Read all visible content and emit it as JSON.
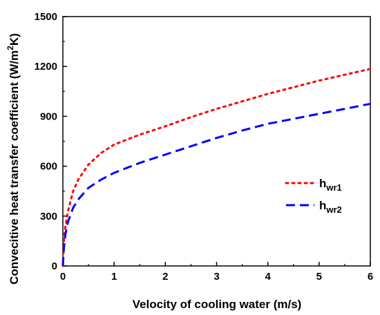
{
  "chart_data": {
    "type": "line",
    "xlabel": "Velocity of cooling water (m/s)",
    "ylabel": {
      "main": "Convecitive heat transfer coefficient (W/m",
      "sup": "2",
      "tail": "K)"
    },
    "xlim": [
      0,
      6
    ],
    "ylim": [
      0,
      1500
    ],
    "xticks": [
      "0",
      "1",
      "2",
      "3",
      "4",
      "5",
      "6"
    ],
    "yticks": [
      "0",
      "300",
      "600",
      "900",
      "1200",
      "1500"
    ],
    "grid": false,
    "legend_position": "right",
    "series": [
      {
        "name": {
          "base": "h",
          "sub": "wr1"
        },
        "color": "#ff0000",
        "style": "dotted",
        "x": [
          0,
          0.02,
          0.05,
          0.1,
          0.2,
          0.3,
          0.5,
          0.75,
          1,
          1.5,
          2,
          2.5,
          3,
          3.5,
          4,
          4.5,
          5,
          5.5,
          6
        ],
        "y": [
          0,
          150,
          240,
          330,
          450,
          520,
          610,
          680,
          730,
          790,
          840,
          895,
          945,
          990,
          1035,
          1075,
          1115,
          1150,
          1185
        ]
      },
      {
        "name": {
          "base": "h",
          "sub": "wr2"
        },
        "color": "#0000ff",
        "style": "dashed",
        "x": [
          0,
          0.02,
          0.05,
          0.1,
          0.2,
          0.3,
          0.5,
          0.75,
          1,
          1.5,
          2,
          2.5,
          3,
          3.5,
          4,
          4.5,
          5,
          5.5,
          6
        ],
        "y": [
          0,
          110,
          190,
          265,
          350,
          400,
          470,
          520,
          560,
          620,
          670,
          720,
          770,
          815,
          855,
          885,
          915,
          945,
          975
        ]
      }
    ]
  }
}
